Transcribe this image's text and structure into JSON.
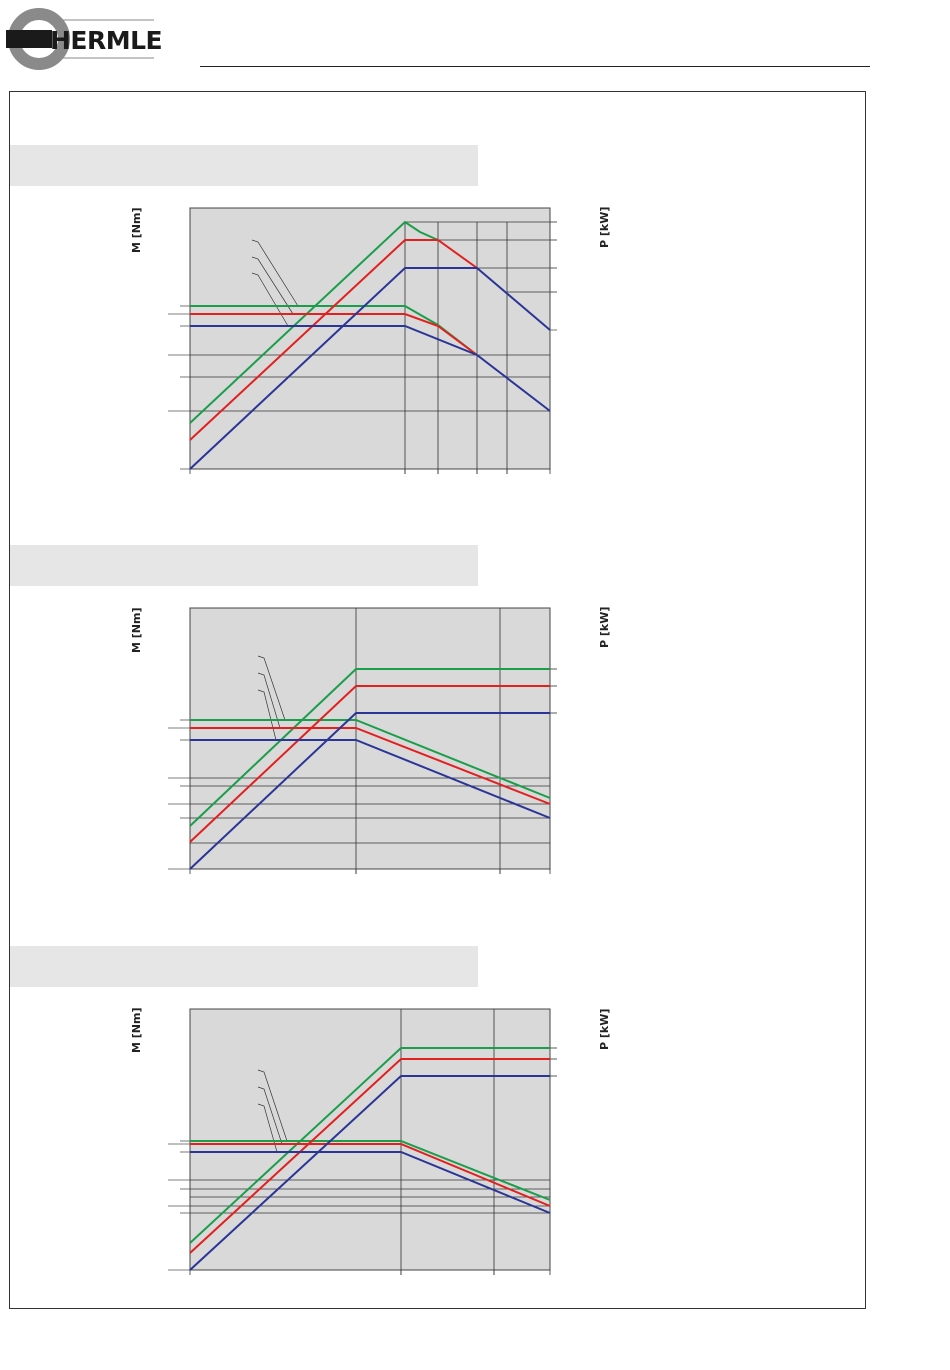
{
  "header": {
    "logo_text": "HERMLE",
    "logo_colors": {
      "ring": "#8a8a8a",
      "block": "#1a1a1a",
      "text": "#1a1a1a"
    }
  },
  "colors": {
    "green": "#1a9e4a",
    "red": "#e32020",
    "blue": "#2a3596",
    "plot_bg": "#d9d9d9",
    "band": "#e6e6e6"
  },
  "charts": [
    {
      "ylabel_left": "M [Nm]",
      "ylabel_right": "P [kW]"
    },
    {
      "ylabel_left": "M [Nm]",
      "ylabel_right": "P [kW]"
    },
    {
      "ylabel_left": "M [Nm]",
      "ylabel_right": "P [kW]"
    }
  ],
  "chart_data": [
    {
      "type": "line",
      "series": [
        {
          "color": "green",
          "values": []
        },
        {
          "color": "red",
          "values": []
        },
        {
          "color": "blue",
          "values": []
        }
      ]
    },
    {
      "type": "line",
      "series": [
        {
          "color": "green",
          "values": []
        },
        {
          "color": "red",
          "values": []
        },
        {
          "color": "blue",
          "values": []
        }
      ]
    },
    {
      "type": "line",
      "series": [
        {
          "color": "green",
          "values": []
        },
        {
          "color": "red",
          "values": []
        },
        {
          "color": "blue",
          "values": []
        }
      ]
    }
  ]
}
